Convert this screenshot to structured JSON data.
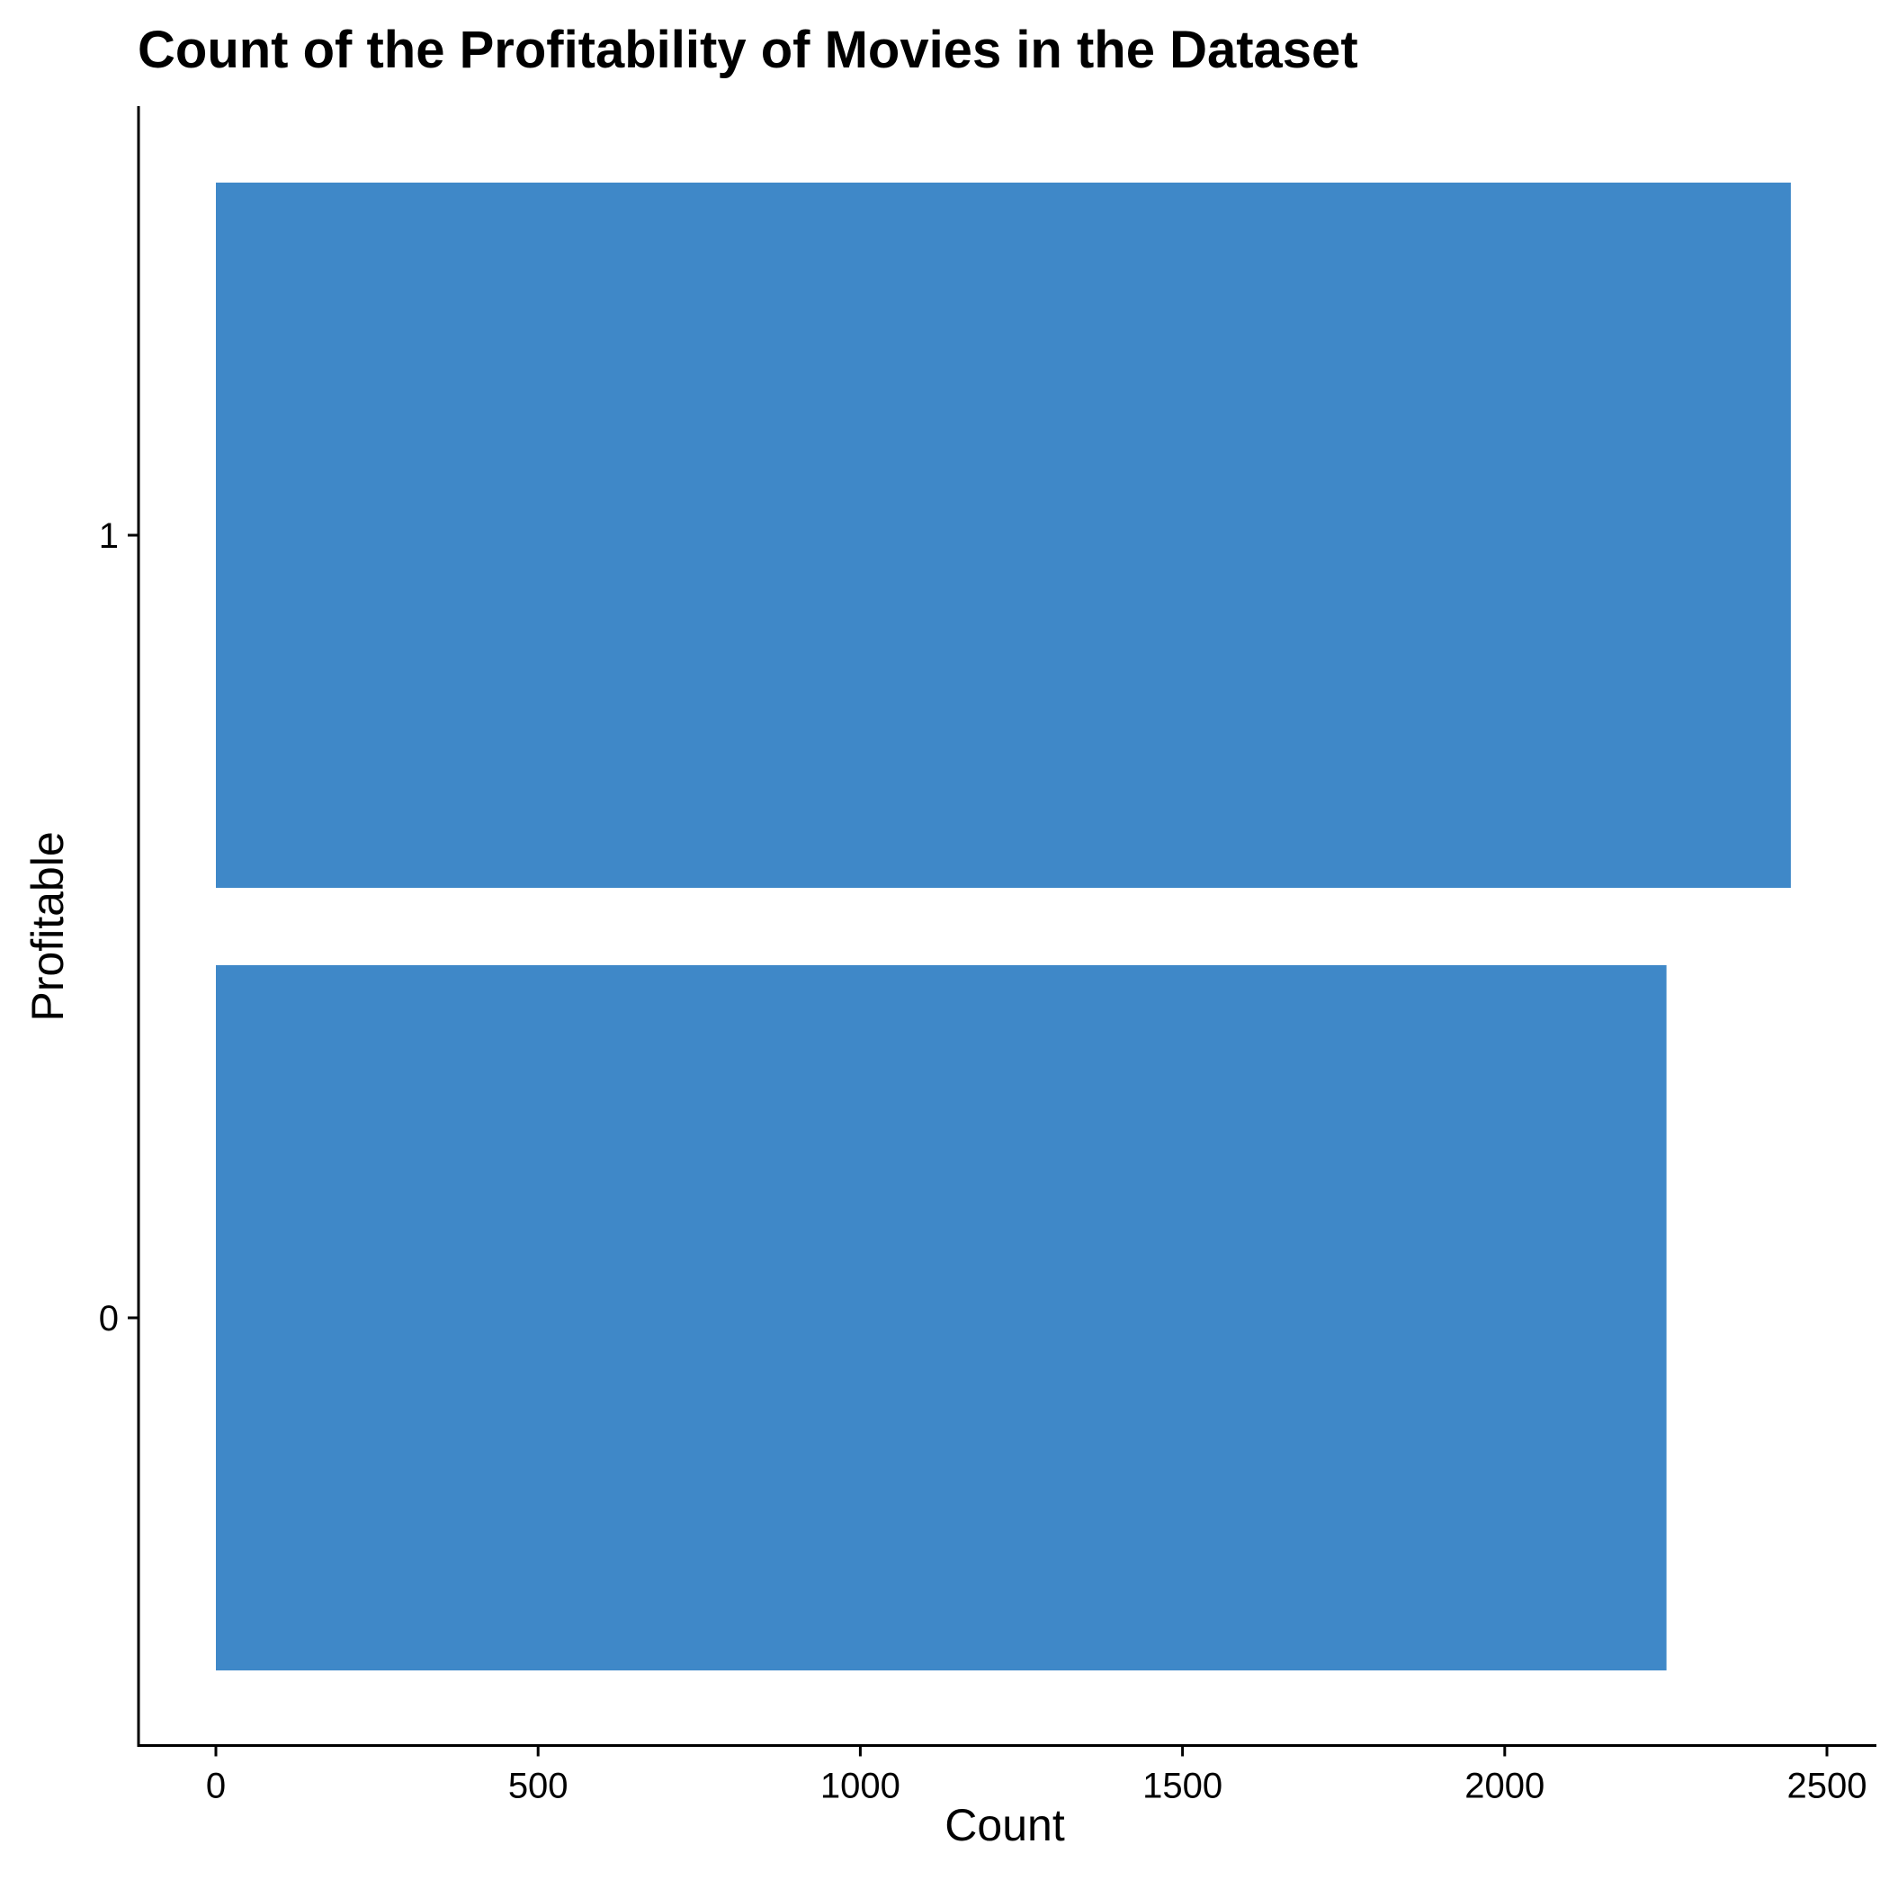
{
  "chart_data": {
    "type": "bar",
    "orientation": "horizontal",
    "title": "Count of the Profitability of Movies in the Dataset",
    "xlabel": "Count",
    "ylabel": "Profitable",
    "categories": [
      "0",
      "1"
    ],
    "values": [
      2251,
      2444
    ],
    "xlim": [
      0,
      2500
    ],
    "x_ticks": [
      0,
      500,
      1000,
      1500,
      2000,
      2500
    ],
    "grid": false,
    "legend": "none",
    "bar_color": "#3f88c8"
  }
}
